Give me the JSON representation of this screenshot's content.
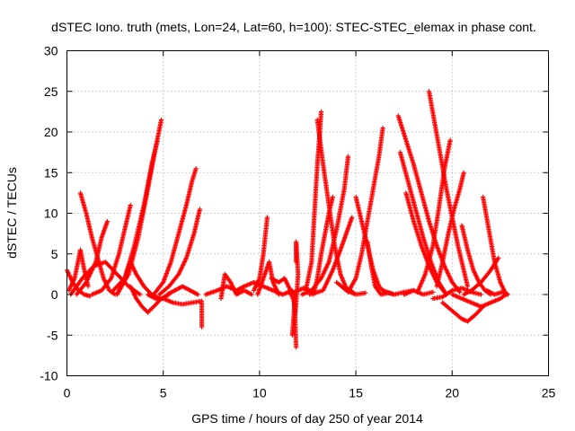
{
  "chart_data": {
    "type": "scatter",
    "title": "dSTEC Iono. truth (mets, Lon=24, Lat=60, h=100): STEC-STEC_elemax in phase cont.",
    "xlabel": "GPS time / hours of day 250 of year 2014",
    "ylabel": "dSTEC  / TECUs",
    "xlim": [
      0,
      25
    ],
    "ylim": [
      -10,
      30
    ],
    "xticks": [
      "0",
      "5",
      "10",
      "15",
      "20",
      "25"
    ],
    "yticks": [
      "-10",
      "-5",
      "0",
      "5",
      "10",
      "15",
      "20",
      "25",
      "30"
    ],
    "grid": true,
    "marker": "+",
    "color": "#ff0000",
    "arcs": [
      [
        [
          0.0,
          3.0
        ],
        [
          0.3,
          1.5
        ],
        [
          0.6,
          0.5
        ],
        [
          0.9,
          0.0
        ],
        [
          1.2,
          -0.2
        ]
      ],
      [
        [
          0.1,
          0.5
        ],
        [
          0.4,
          2.0
        ],
        [
          0.7,
          5.5
        ],
        [
          0.9,
          3.0
        ],
        [
          1.1,
          1.0
        ]
      ],
      [
        [
          0.7,
          12.5
        ],
        [
          1.0,
          10.0
        ],
        [
          1.3,
          7.0
        ],
        [
          1.6,
          4.5
        ],
        [
          1.9,
          2.0
        ],
        [
          2.2,
          0.5
        ],
        [
          2.5,
          0.0
        ]
      ],
      [
        [
          0.5,
          0.0
        ],
        [
          1.0,
          1.5
        ],
        [
          1.5,
          4.0
        ],
        [
          1.8,
          7.0
        ],
        [
          2.1,
          9.0
        ]
      ],
      [
        [
          0.2,
          0.0
        ],
        [
          0.8,
          2.0
        ],
        [
          1.4,
          3.5
        ],
        [
          2.0,
          4.0
        ],
        [
          2.6,
          2.5
        ],
        [
          3.2,
          1.0
        ],
        [
          3.8,
          0.0
        ]
      ],
      [
        [
          1.3,
          0.0
        ],
        [
          1.8,
          0.5
        ],
        [
          2.3,
          2.0
        ],
        [
          2.7,
          5.0
        ],
        [
          3.0,
          8.0
        ],
        [
          3.3,
          11.0
        ]
      ],
      [
        [
          2.6,
          0.0
        ],
        [
          3.0,
          2.0
        ],
        [
          3.3,
          4.0
        ],
        [
          3.6,
          2.5
        ],
        [
          4.0,
          1.0
        ],
        [
          4.4,
          0.0
        ],
        [
          4.8,
          -0.5
        ]
      ],
      [
        [
          2.4,
          0.5
        ],
        [
          3.0,
          2.0
        ],
        [
          3.5,
          6.0
        ],
        [
          4.0,
          11.0
        ],
        [
          4.4,
          16.0
        ],
        [
          4.7,
          19.0
        ]
      ],
      [
        [
          2.6,
          0.0
        ],
        [
          3.2,
          2.5
        ],
        [
          3.7,
          7.0
        ],
        [
          4.2,
          13.0
        ],
        [
          4.6,
          18.0
        ],
        [
          4.9,
          21.5
        ]
      ],
      [
        [
          3.3,
          1.0
        ],
        [
          3.6,
          -0.5
        ],
        [
          3.9,
          -1.5
        ],
        [
          4.2,
          -2.2
        ],
        [
          4.5,
          -1.5
        ],
        [
          4.9,
          -0.5
        ],
        [
          5.3,
          0.0
        ]
      ],
      [
        [
          4.2,
          0.0
        ],
        [
          4.6,
          -0.5
        ],
        [
          5.0,
          -0.5
        ],
        [
          5.5,
          -1.0
        ],
        [
          6.0,
          -1.2
        ],
        [
          6.5,
          -1.0
        ],
        [
          7.0,
          -0.8
        ]
      ],
      [
        [
          4.5,
          0.0
        ],
        [
          5.0,
          1.5
        ],
        [
          5.4,
          4.0
        ],
        [
          5.8,
          7.5
        ],
        [
          6.2,
          11.0
        ],
        [
          6.5,
          14.0
        ],
        [
          6.7,
          15.5
        ]
      ],
      [
        [
          4.8,
          0.0
        ],
        [
          5.3,
          1.0
        ],
        [
          5.8,
          2.5
        ],
        [
          6.2,
          4.5
        ],
        [
          6.6,
          7.5
        ],
        [
          6.9,
          10.5
        ]
      ],
      [
        [
          5.2,
          0.0
        ],
        [
          5.6,
          0.5
        ],
        [
          6.0,
          1.0
        ],
        [
          6.4,
          0.5
        ],
        [
          6.8,
          0.0
        ]
      ],
      [
        [
          7.0,
          -1.0
        ],
        [
          7.0,
          -2.0
        ],
        [
          7.0,
          -3.0
        ],
        [
          7.0,
          -4.0
        ]
      ],
      [
        [
          7.2,
          0.0
        ],
        [
          7.8,
          0.5
        ],
        [
          8.3,
          1.0
        ],
        [
          8.8,
          0.5
        ],
        [
          9.2,
          1.0
        ],
        [
          9.7,
          1.5
        ],
        [
          10.2,
          1.0
        ],
        [
          10.7,
          0.5
        ],
        [
          11.2,
          0.0
        ],
        [
          11.7,
          0.5
        ]
      ],
      [
        [
          8.0,
          -0.5
        ],
        [
          8.2,
          2.5
        ],
        [
          8.5,
          1.5
        ],
        [
          8.8,
          0.0
        ],
        [
          9.2,
          0.5
        ],
        [
          9.6,
          0.0
        ]
      ],
      [
        [
          9.7,
          0.5
        ],
        [
          10.0,
          2.0
        ],
        [
          10.2,
          5.0
        ],
        [
          10.4,
          9.5
        ]
      ],
      [
        [
          9.9,
          0.0
        ],
        [
          10.2,
          2.0
        ],
        [
          10.5,
          4.0
        ],
        [
          10.7,
          1.5
        ],
        [
          11.0,
          0.0
        ]
      ],
      [
        [
          10.6,
          2.0
        ],
        [
          11.0,
          1.5
        ],
        [
          11.3,
          2.0
        ],
        [
          11.6,
          0.5
        ],
        [
          11.8,
          -1.0
        ]
      ],
      [
        [
          11.7,
          -5.0
        ],
        [
          11.8,
          -2.0
        ],
        [
          11.8,
          0.0
        ],
        [
          11.9,
          -6.5
        ]
      ],
      [
        [
          11.9,
          4.0
        ],
        [
          11.9,
          6.5
        ],
        [
          12.0,
          2.5
        ],
        [
          11.9,
          -1.0
        ],
        [
          11.8,
          -3.5
        ]
      ],
      [
        [
          11.6,
          0.0
        ],
        [
          12.0,
          0.5
        ],
        [
          12.3,
          0.8
        ],
        [
          12.6,
          0.5
        ],
        [
          12.9,
          0.2
        ]
      ],
      [
        [
          12.4,
          0.5
        ],
        [
          12.7,
          4.0
        ],
        [
          12.8,
          8.0
        ],
        [
          12.9,
          12.0
        ],
        [
          13.0,
          16.0
        ],
        [
          13.1,
          19.0
        ],
        [
          13.2,
          22.5
        ]
      ],
      [
        [
          12.8,
          0.0
        ],
        [
          13.0,
          2.0
        ],
        [
          13.2,
          5.0
        ],
        [
          13.4,
          7.5
        ],
        [
          13.6,
          10.0
        ],
        [
          13.8,
          12.0
        ]
      ],
      [
        [
          12.6,
          0.0
        ],
        [
          13.3,
          0.5
        ],
        [
          13.8,
          3.0
        ],
        [
          14.2,
          5.5
        ],
        [
          14.5,
          7.5
        ],
        [
          14.8,
          9.5
        ]
      ],
      [
        [
          12.2,
          0.0
        ],
        [
          12.7,
          0.5
        ],
        [
          13.2,
          2.0
        ],
        [
          13.6,
          4.0
        ],
        [
          14.0,
          8.0
        ],
        [
          14.4,
          13.0
        ],
        [
          14.6,
          17.0
        ]
      ],
      [
        [
          13.0,
          21.5
        ],
        [
          13.3,
          16.0
        ],
        [
          13.6,
          11.0
        ],
        [
          13.9,
          6.0
        ],
        [
          14.2,
          2.5
        ],
        [
          14.5,
          0.8
        ],
        [
          14.9,
          0.2
        ]
      ],
      [
        [
          14.0,
          1.5
        ],
        [
          14.5,
          0.5
        ],
        [
          15.0,
          0.0
        ],
        [
          15.5,
          0.2
        ]
      ],
      [
        [
          15.0,
          12.0
        ],
        [
          15.3,
          9.0
        ],
        [
          15.6,
          6.0
        ],
        [
          15.9,
          3.0
        ],
        [
          16.2,
          1.0
        ],
        [
          16.5,
          0.3
        ]
      ],
      [
        [
          14.6,
          0.3
        ],
        [
          15.0,
          2.0
        ],
        [
          15.3,
          5.0
        ],
        [
          15.6,
          9.0
        ],
        [
          15.9,
          13.0
        ],
        [
          16.2,
          17.0
        ],
        [
          16.4,
          20.5
        ]
      ],
      [
        [
          15.6,
          6.5
        ],
        [
          15.8,
          3.5
        ],
        [
          16.0,
          1.0
        ],
        [
          16.3,
          0.0
        ],
        [
          16.7,
          0.2
        ],
        [
          17.0,
          0.0
        ]
      ],
      [
        [
          16.4,
          0.5
        ],
        [
          17.0,
          0.0
        ],
        [
          17.5,
          0.3
        ],
        [
          18.0,
          0.5
        ]
      ],
      [
        [
          17.2,
          22.0
        ],
        [
          17.6,
          19.0
        ],
        [
          18.0,
          16.0
        ],
        [
          18.4,
          12.5
        ],
        [
          18.8,
          9.0
        ],
        [
          19.2,
          6.0
        ],
        [
          19.6,
          3.5
        ],
        [
          20.0,
          1.5
        ],
        [
          20.4,
          0.3
        ]
      ],
      [
        [
          17.3,
          17.5
        ],
        [
          17.7,
          14.0
        ],
        [
          18.1,
          10.5
        ],
        [
          18.5,
          7.0
        ],
        [
          18.9,
          4.0
        ],
        [
          19.3,
          1.5
        ],
        [
          19.7,
          0.0
        ]
      ],
      [
        [
          17.6,
          12.5
        ],
        [
          18.0,
          9.0
        ],
        [
          18.4,
          6.0
        ],
        [
          18.8,
          3.5
        ],
        [
          19.2,
          1.5
        ],
        [
          19.6,
          0.3
        ]
      ],
      [
        [
          18.8,
          25.0
        ],
        [
          19.1,
          21.0
        ],
        [
          19.4,
          17.0
        ],
        [
          19.7,
          13.0
        ],
        [
          20.0,
          9.5
        ],
        [
          20.3,
          6.0
        ],
        [
          20.6,
          3.0
        ],
        [
          20.8,
          1.0
        ]
      ],
      [
        [
          18.2,
          0.3
        ],
        [
          18.6,
          2.5
        ],
        [
          19.0,
          6.0
        ],
        [
          19.3,
          10.5
        ],
        [
          19.6,
          15.5
        ],
        [
          19.9,
          19.0
        ]
      ],
      [
        [
          19.2,
          1.0
        ],
        [
          19.5,
          4.0
        ],
        [
          19.8,
          7.5
        ],
        [
          20.1,
          10.5
        ],
        [
          20.4,
          13.0
        ],
        [
          20.6,
          15.0
        ]
      ],
      [
        [
          20.5,
          8.5
        ],
        [
          20.8,
          5.5
        ],
        [
          21.1,
          3.0
        ],
        [
          21.4,
          1.5
        ],
        [
          21.7,
          0.5
        ],
        [
          22.0,
          0.0
        ]
      ],
      [
        [
          19.5,
          -1.0
        ],
        [
          20.0,
          -2.0
        ],
        [
          20.5,
          -3.0
        ],
        [
          20.8,
          -3.3
        ],
        [
          21.2,
          -2.5
        ],
        [
          21.6,
          -1.5
        ]
      ],
      [
        [
          19.0,
          -0.5
        ],
        [
          19.5,
          -0.3
        ],
        [
          20.0,
          0.5
        ],
        [
          20.5,
          0.8
        ],
        [
          21.0,
          0.3
        ],
        [
          21.5,
          0.0
        ]
      ],
      [
        [
          20.0,
          0.0
        ],
        [
          20.5,
          -0.5
        ],
        [
          21.0,
          -1.0
        ],
        [
          21.5,
          -1.5
        ],
        [
          22.0,
          -1.0
        ],
        [
          22.5,
          -0.5
        ],
        [
          22.8,
          0.0
        ]
      ],
      [
        [
          21.6,
          12.0
        ],
        [
          21.9,
          8.0
        ],
        [
          22.2,
          4.0
        ],
        [
          22.5,
          1.5
        ],
        [
          22.8,
          0.0
        ]
      ],
      [
        [
          20.6,
          0.0
        ],
        [
          21.0,
          0.5
        ],
        [
          21.5,
          1.5
        ],
        [
          22.0,
          3.0
        ],
        [
          22.4,
          4.5
        ]
      ],
      [
        [
          17.5,
          0.0
        ],
        [
          18.0,
          0.5
        ],
        [
          18.5,
          0.0
        ],
        [
          19.0,
          0.3
        ]
      ],
      [
        [
          21.8,
          0.5
        ],
        [
          22.2,
          0.0
        ],
        [
          22.6,
          0.3
        ],
        [
          22.9,
          0.0
        ]
      ]
    ]
  }
}
